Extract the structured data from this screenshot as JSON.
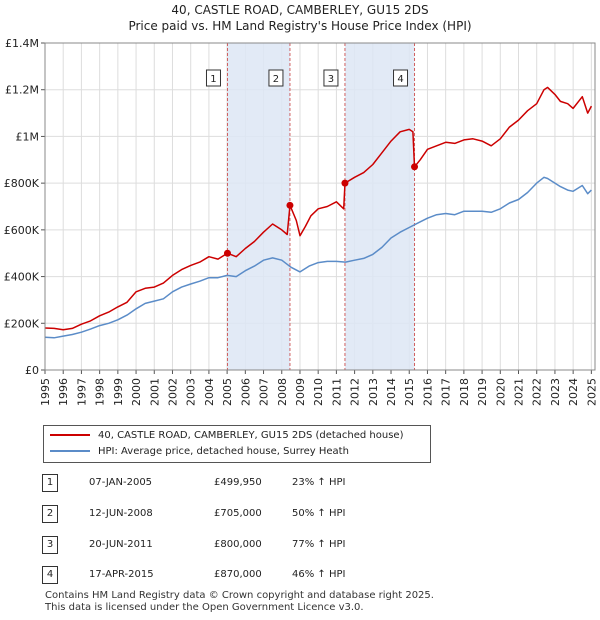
{
  "title": "40, CASTLE ROAD, CAMBERLEY, GU15 2DS",
  "subtitle": "Price paid vs. HM Land Registry's House Price Index (HPI)",
  "colors": {
    "property": "#cc0000",
    "hpi": "#5b8cc8",
    "shade": "#dde6f5",
    "vline": "#d06060"
  },
  "legend": {
    "property_label": "40, CASTLE ROAD, CAMBERLEY, GU15 2DS (detached house)",
    "hpi_label": "HPI: Average price, detached house, Surrey Heath"
  },
  "transactions": [
    {
      "num": "1",
      "date": "07-JAN-2005",
      "price": "£499,950",
      "hpi": "23% ↑ HPI"
    },
    {
      "num": "2",
      "date": "12-JUN-2008",
      "price": "£705,000",
      "hpi": "50% ↑ HPI"
    },
    {
      "num": "3",
      "date": "20-JUN-2011",
      "price": "£800,000",
      "hpi": "77% ↑ HPI"
    },
    {
      "num": "4",
      "date": "17-APR-2015",
      "price": "£870,000",
      "hpi": "46% ↑ HPI"
    }
  ],
  "footer": {
    "line1": "Contains HM Land Registry data © Crown copyright and database right 2025.",
    "line2": "This data is licensed under the Open Government Licence v3.0."
  },
  "chart_data": {
    "type": "line",
    "title": "40, CASTLE ROAD, CAMBERLEY, GU15 2DS",
    "subtitle": "Price paid vs. HM Land Registry's House Price Index (HPI)",
    "xlim": [
      1995,
      2025.2
    ],
    "ylim": [
      0,
      1400000
    ],
    "yticks": [
      0,
      200000,
      400000,
      600000,
      800000,
      1000000,
      1200000,
      1400000
    ],
    "ytick_labels": [
      "£0",
      "£200K",
      "£400K",
      "£600K",
      "£800K",
      "£1M",
      "£1.2M",
      "£1.4M"
    ],
    "xtick_labels": [
      "1995",
      "1996",
      "1997",
      "1998",
      "1999",
      "2000",
      "2001",
      "2002",
      "2003",
      "2004",
      "2005",
      "2006",
      "2007",
      "2008",
      "2009",
      "2010",
      "2011",
      "2012",
      "2013",
      "2014",
      "2015",
      "2016",
      "2017",
      "2018",
      "2019",
      "2020",
      "2021",
      "2022",
      "2023",
      "2024",
      "2025"
    ],
    "grid": true,
    "shaded_periods": [
      [
        2005.02,
        2008.45
      ],
      [
        2011.47,
        2015.29
      ]
    ],
    "sales": [
      {
        "label": "1",
        "x": 2005.02,
        "y": 499950
      },
      {
        "label": "2",
        "x": 2008.45,
        "y": 705000
      },
      {
        "label": "3",
        "x": 2011.47,
        "y": 800000
      },
      {
        "label": "4",
        "x": 2015.29,
        "y": 870000
      }
    ],
    "series": [
      {
        "name": "40, CASTLE ROAD, CAMBERLEY, GU15 2DS (detached house)",
        "x": [
          1995,
          1995.5,
          1996,
          1996.5,
          1997,
          1997.5,
          1998,
          1998.5,
          1999,
          1999.5,
          2000,
          2000.5,
          2001,
          2001.5,
          2002,
          2002.5,
          2003,
          2003.5,
          2004,
          2004.5,
          2005.02,
          2005.5,
          2006,
          2006.5,
          2007,
          2007.5,
          2008,
          2008.3,
          2008.45,
          2008.8,
          2009,
          2009.3,
          2009.6,
          2010,
          2010.5,
          2011,
          2011.4,
          2011.47,
          2012,
          2012.5,
          2013,
          2013.5,
          2014,
          2014.5,
          2015,
          2015.2,
          2015.29,
          2015.6,
          2016,
          2016.5,
          2017,
          2017.5,
          2018,
          2018.5,
          2019,
          2019.5,
          2020,
          2020.5,
          2021,
          2021.5,
          2022,
          2022.4,
          2022.6,
          2023,
          2023.3,
          2023.7,
          2024,
          2024.5,
          2024.8,
          2025
        ],
        "values": [
          180000,
          178000,
          172000,
          178000,
          196000,
          210000,
          232000,
          248000,
          270000,
          290000,
          335000,
          350000,
          355000,
          372000,
          405000,
          430000,
          448000,
          462000,
          485000,
          475000,
          499950,
          485000,
          520000,
          550000,
          590000,
          625000,
          600000,
          580000,
          705000,
          640000,
          575000,
          615000,
          660000,
          690000,
          700000,
          720000,
          690000,
          800000,
          825000,
          845000,
          880000,
          930000,
          980000,
          1020000,
          1030000,
          1020000,
          870000,
          900000,
          945000,
          960000,
          975000,
          970000,
          985000,
          990000,
          980000,
          960000,
          990000,
          1040000,
          1070000,
          1110000,
          1140000,
          1200000,
          1210000,
          1180000,
          1150000,
          1140000,
          1120000,
          1170000,
          1100000,
          1130000
        ]
      },
      {
        "name": "HPI: Average price, detached house, Surrey Heath",
        "x": [
          1995,
          1995.5,
          1996,
          1996.5,
          1997,
          1997.5,
          1998,
          1998.5,
          1999,
          1999.5,
          2000,
          2000.5,
          2001,
          2001.5,
          2002,
          2002.5,
          2003,
          2003.5,
          2004,
          2004.5,
          2005,
          2005.5,
          2006,
          2006.5,
          2007,
          2007.5,
          2008,
          2008.5,
          2009,
          2009.5,
          2010,
          2010.5,
          2011,
          2011.5,
          2012,
          2012.5,
          2013,
          2013.5,
          2014,
          2014.5,
          2015,
          2015.5,
          2016,
          2016.5,
          2017,
          2017.5,
          2018,
          2018.5,
          2019,
          2019.5,
          2020,
          2020.5,
          2021,
          2021.5,
          2022,
          2022.4,
          2022.6,
          2023,
          2023.3,
          2023.7,
          2024,
          2024.5,
          2024.8,
          2025
        ],
        "values": [
          140000,
          138000,
          145000,
          152000,
          162000,
          175000,
          190000,
          200000,
          215000,
          235000,
          262000,
          285000,
          295000,
          305000,
          335000,
          355000,
          368000,
          380000,
          395000,
          395000,
          405000,
          400000,
          425000,
          445000,
          470000,
          480000,
          470000,
          440000,
          420000,
          445000,
          460000,
          465000,
          465000,
          462000,
          470000,
          478000,
          495000,
          525000,
          565000,
          590000,
          610000,
          630000,
          650000,
          665000,
          670000,
          665000,
          680000,
          680000,
          680000,
          675000,
          690000,
          715000,
          730000,
          760000,
          800000,
          825000,
          820000,
          800000,
          785000,
          770000,
          765000,
          790000,
          755000,
          770000
        ]
      }
    ]
  }
}
